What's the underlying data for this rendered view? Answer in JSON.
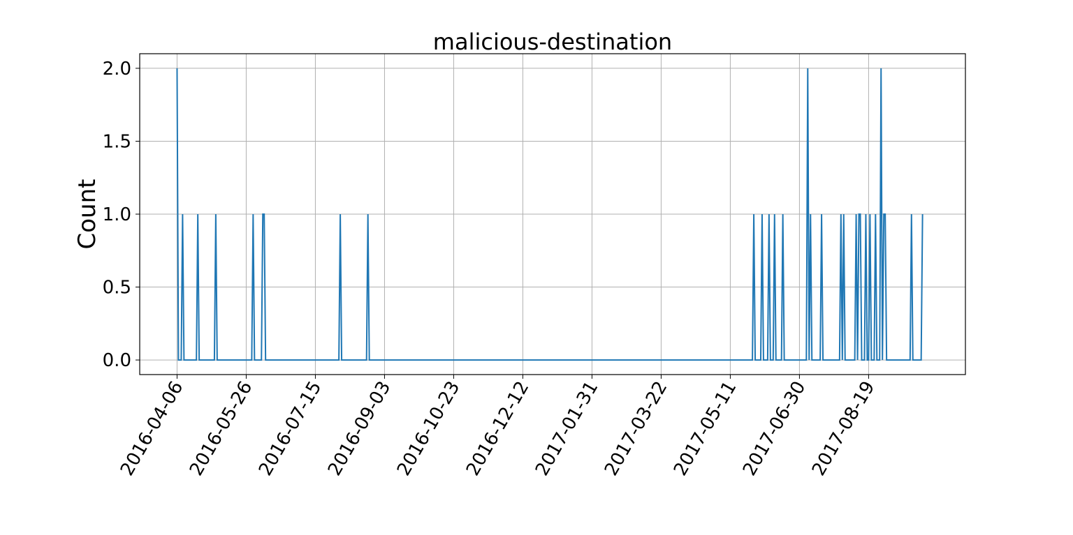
{
  "chart_data": {
    "type": "line",
    "title": "malicious-destination",
    "xlabel": "",
    "ylabel": "Count",
    "x_type": "date",
    "xlim": [
      "2016-03-10",
      "2017-10-28"
    ],
    "ylim": [
      -0.1,
      2.1
    ],
    "grid": true,
    "legend": "none",
    "x_ticks": [
      "2016-04-06",
      "2016-05-26",
      "2016-07-15",
      "2016-09-03",
      "2016-10-23",
      "2016-12-12",
      "2017-01-31",
      "2017-03-22",
      "2017-05-11",
      "2017-06-30",
      "2017-08-19"
    ],
    "y_ticks": [
      "0.0",
      "0.5",
      "1.0",
      "1.5",
      "2.0"
    ],
    "y_tick_values": [
      0.0,
      0.5,
      1.0,
      1.5,
      2.0
    ],
    "series": [
      {
        "color": "#1f77b4",
        "points": [
          [
            "2016-04-06",
            2
          ],
          [
            "2016-04-07",
            0
          ],
          [
            "2016-04-09",
            0
          ],
          [
            "2016-04-10",
            1
          ],
          [
            "2016-04-11",
            0
          ],
          [
            "2016-04-20",
            0
          ],
          [
            "2016-04-21",
            1
          ],
          [
            "2016-04-22",
            0
          ],
          [
            "2016-05-03",
            0
          ],
          [
            "2016-05-04",
            1
          ],
          [
            "2016-05-05",
            0
          ],
          [
            "2016-05-30",
            0
          ],
          [
            "2016-05-31",
            1
          ],
          [
            "2016-06-01",
            0
          ],
          [
            "2016-06-06",
            0
          ],
          [
            "2016-06-07",
            1
          ],
          [
            "2016-06-08",
            1
          ],
          [
            "2016-06-09",
            0
          ],
          [
            "2016-08-01",
            0
          ],
          [
            "2016-08-02",
            1
          ],
          [
            "2016-08-03",
            0
          ],
          [
            "2016-08-21",
            0
          ],
          [
            "2016-08-22",
            1
          ],
          [
            "2016-08-23",
            0
          ],
          [
            "2017-05-27",
            0
          ],
          [
            "2017-05-28",
            1
          ],
          [
            "2017-05-29",
            0
          ],
          [
            "2017-06-02",
            0
          ],
          [
            "2017-06-03",
            1
          ],
          [
            "2017-06-04",
            0
          ],
          [
            "2017-06-07",
            0
          ],
          [
            "2017-06-08",
            1
          ],
          [
            "2017-06-09",
            0
          ],
          [
            "2017-06-11",
            0
          ],
          [
            "2017-06-12",
            1
          ],
          [
            "2017-06-13",
            0
          ],
          [
            "2017-06-17",
            0
          ],
          [
            "2017-06-18",
            1
          ],
          [
            "2017-06-19",
            0
          ],
          [
            "2017-07-05",
            0
          ],
          [
            "2017-07-06",
            2
          ],
          [
            "2017-07-07",
            0
          ],
          [
            "2017-07-08",
            1
          ],
          [
            "2017-07-09",
            0
          ],
          [
            "2017-07-15",
            0
          ],
          [
            "2017-07-16",
            1
          ],
          [
            "2017-07-17",
            0
          ],
          [
            "2017-07-29",
            0
          ],
          [
            "2017-07-30",
            1
          ],
          [
            "2017-07-31",
            0
          ],
          [
            "2017-08-01",
            1
          ],
          [
            "2017-08-02",
            0
          ],
          [
            "2017-08-09",
            0
          ],
          [
            "2017-08-10",
            1
          ],
          [
            "2017-08-11",
            0
          ],
          [
            "2017-08-12",
            1
          ],
          [
            "2017-08-13",
            1
          ],
          [
            "2017-08-14",
            0
          ],
          [
            "2017-08-16",
            0
          ],
          [
            "2017-08-17",
            1
          ],
          [
            "2017-08-18",
            0
          ],
          [
            "2017-08-19",
            0
          ],
          [
            "2017-08-20",
            1
          ],
          [
            "2017-08-21",
            0
          ],
          [
            "2017-08-23",
            0
          ],
          [
            "2017-08-24",
            1
          ],
          [
            "2017-08-25",
            0
          ],
          [
            "2017-08-27",
            0
          ],
          [
            "2017-08-28",
            2
          ],
          [
            "2017-08-29",
            0
          ],
          [
            "2017-08-30",
            1
          ],
          [
            "2017-08-31",
            1
          ],
          [
            "2017-09-01",
            0
          ],
          [
            "2017-09-18",
            0
          ],
          [
            "2017-09-19",
            1
          ],
          [
            "2017-09-20",
            0
          ],
          [
            "2017-09-26",
            0
          ],
          [
            "2017-09-27",
            1
          ]
        ]
      }
    ]
  }
}
